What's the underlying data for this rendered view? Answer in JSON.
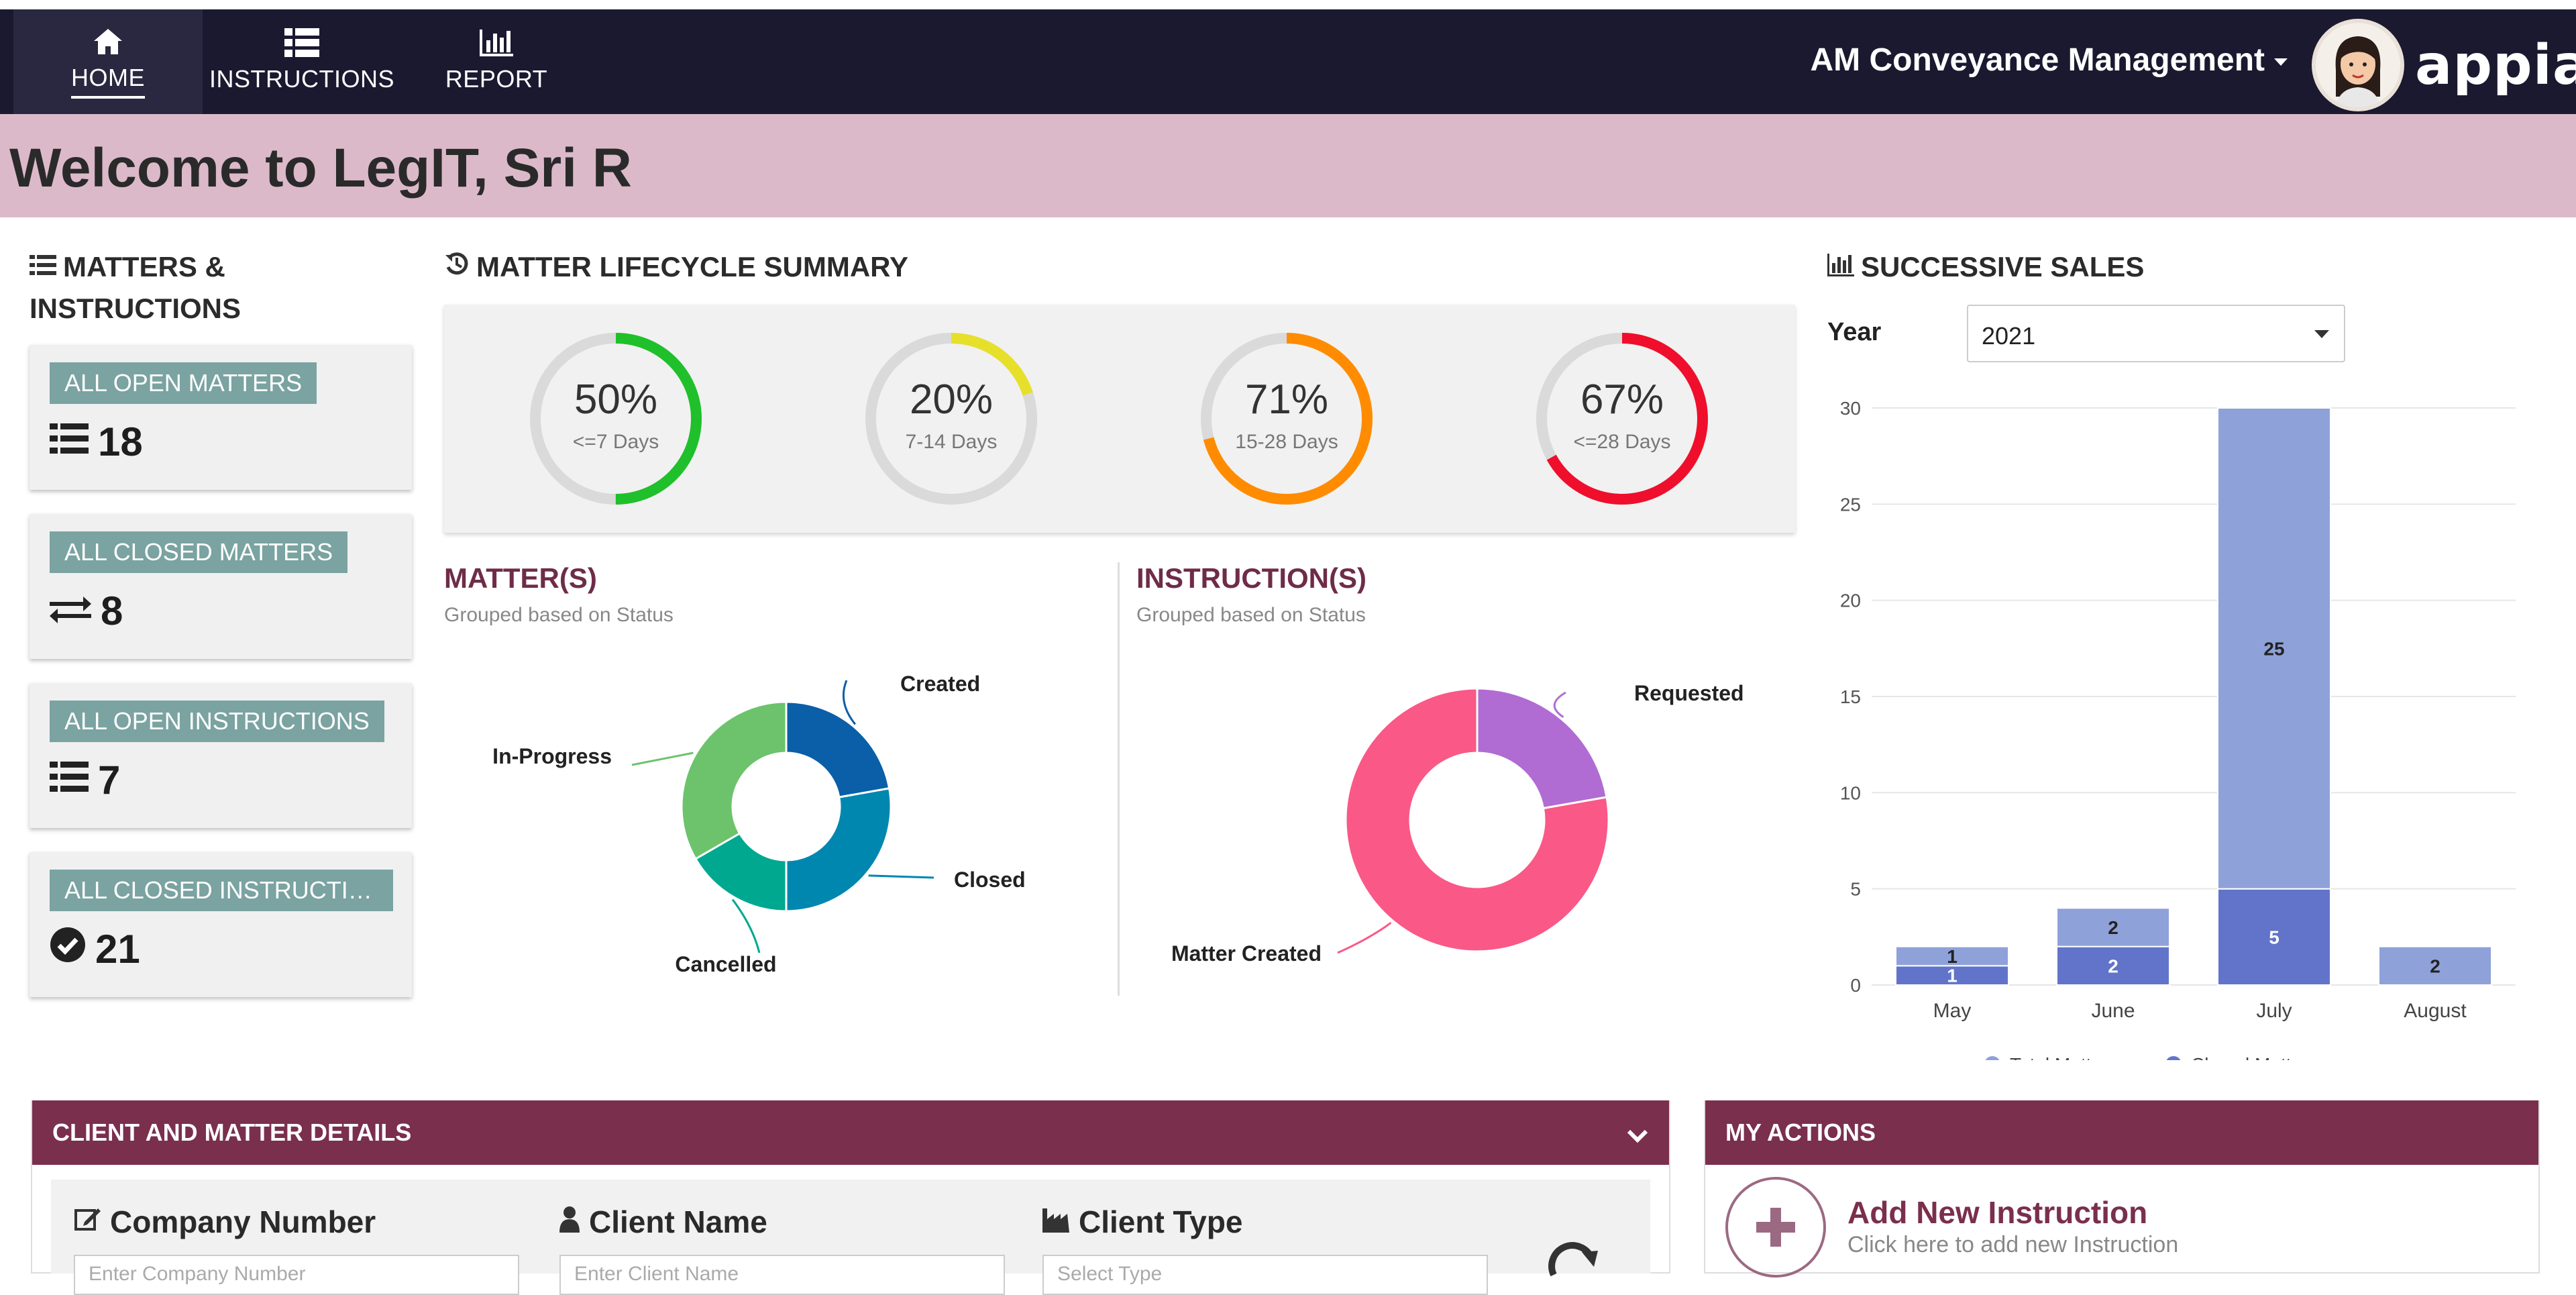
{
  "nav": {
    "items": [
      {
        "label": "HOME",
        "icon": "home-icon"
      },
      {
        "label": "INSTRUCTIONS",
        "icon": "list-icon"
      },
      {
        "label": "REPORT",
        "icon": "bar-chart-icon"
      }
    ],
    "app_menu": "AM Conveyance Management",
    "logo": "appian"
  },
  "banner": {
    "title": "Welcome to LegIT, Sri R"
  },
  "matters_instructions": {
    "title_line1": "MATTERS &",
    "title_line2": "INSTRUCTIONS",
    "cards": [
      {
        "label": "ALL OPEN MATTERS",
        "count": "18",
        "icon": "list-icon"
      },
      {
        "label": "ALL CLOSED MATTERS",
        "count": "8",
        "icon": "exchange-icon"
      },
      {
        "label": "ALL OPEN INSTRUCTIONS",
        "count": "7",
        "icon": "list-icon"
      },
      {
        "label": "ALL CLOSED INSTRUCTIO...",
        "count": "21",
        "icon": "check-circle-icon"
      }
    ]
  },
  "lifecycle": {
    "title": "MATTER LIFECYCLE SUMMARY",
    "gauges": [
      {
        "pct": "50%",
        "value": 50,
        "label": "<=7 Days",
        "color": "#1fc02b"
      },
      {
        "pct": "20%",
        "value": 20,
        "label": "7-14 Days",
        "color": "#e6e02a"
      },
      {
        "pct": "71%",
        "value": 71,
        "label": "15-28 Days",
        "color": "#ff8c00"
      },
      {
        "pct": "67%",
        "value": 67,
        "label": "<=28 Days",
        "color": "#ef0f2c"
      }
    ]
  },
  "matters": {
    "title": "MATTER(S)",
    "subtitle": "Grouped based on Status"
  },
  "instructions": {
    "title": "INSTRUCTION(S)",
    "subtitle": "Grouped based on Status"
  },
  "sales": {
    "title": "SUCCESSIVE SALES",
    "year_label": "Year",
    "year_value": "2021"
  },
  "chart_data": [
    {
      "type": "pie",
      "title": "MATTER(S)",
      "subtitle": "Grouped based on Status",
      "donut": true,
      "labels": [
        "Created",
        "Closed",
        "Cancelled",
        "In-Progress"
      ],
      "values": [
        4,
        5,
        3,
        6
      ],
      "colors": [
        "#0a5fa8",
        "#0087b0",
        "#00a88f",
        "#6cc36c"
      ]
    },
    {
      "type": "pie",
      "title": "INSTRUCTION(S)",
      "subtitle": "Grouped based on Status",
      "donut": true,
      "labels": [
        "Requested",
        "Matter Created"
      ],
      "values": [
        2,
        7
      ],
      "colors": [
        "#b06cd2",
        "#fa5886"
      ]
    },
    {
      "type": "bar",
      "stacked": true,
      "title": "SUCCESSIVE SALES",
      "categories": [
        "May",
        "June",
        "July",
        "August"
      ],
      "series": [
        {
          "name": "Total Matters",
          "values": [
            1,
            2,
            25,
            2
          ],
          "color": "#8fa1d9"
        },
        {
          "name": "Closed Matters",
          "values": [
            1,
            2,
            5,
            0
          ],
          "color": "#6274c9"
        }
      ],
      "ylim": [
        0,
        30
      ],
      "yticks": [
        0,
        5,
        10,
        15,
        20,
        25,
        30
      ],
      "grid": true,
      "legend": "bottom"
    }
  ],
  "client_panel": {
    "title": "CLIENT AND MATTER DETAILS",
    "fields": [
      {
        "label": "Company Number",
        "placeholder": "Enter Company Number",
        "icon": "edit-icon"
      },
      {
        "label": "Client Name",
        "placeholder": "Enter Client Name",
        "icon": "user-icon"
      },
      {
        "label": "Client Type",
        "placeholder": "Select Type",
        "icon": "industry-icon"
      }
    ]
  },
  "actions_panel": {
    "title": "MY ACTIONS",
    "action_title": "Add New Instruction",
    "action_sub": "Click here to add new Instruction"
  }
}
